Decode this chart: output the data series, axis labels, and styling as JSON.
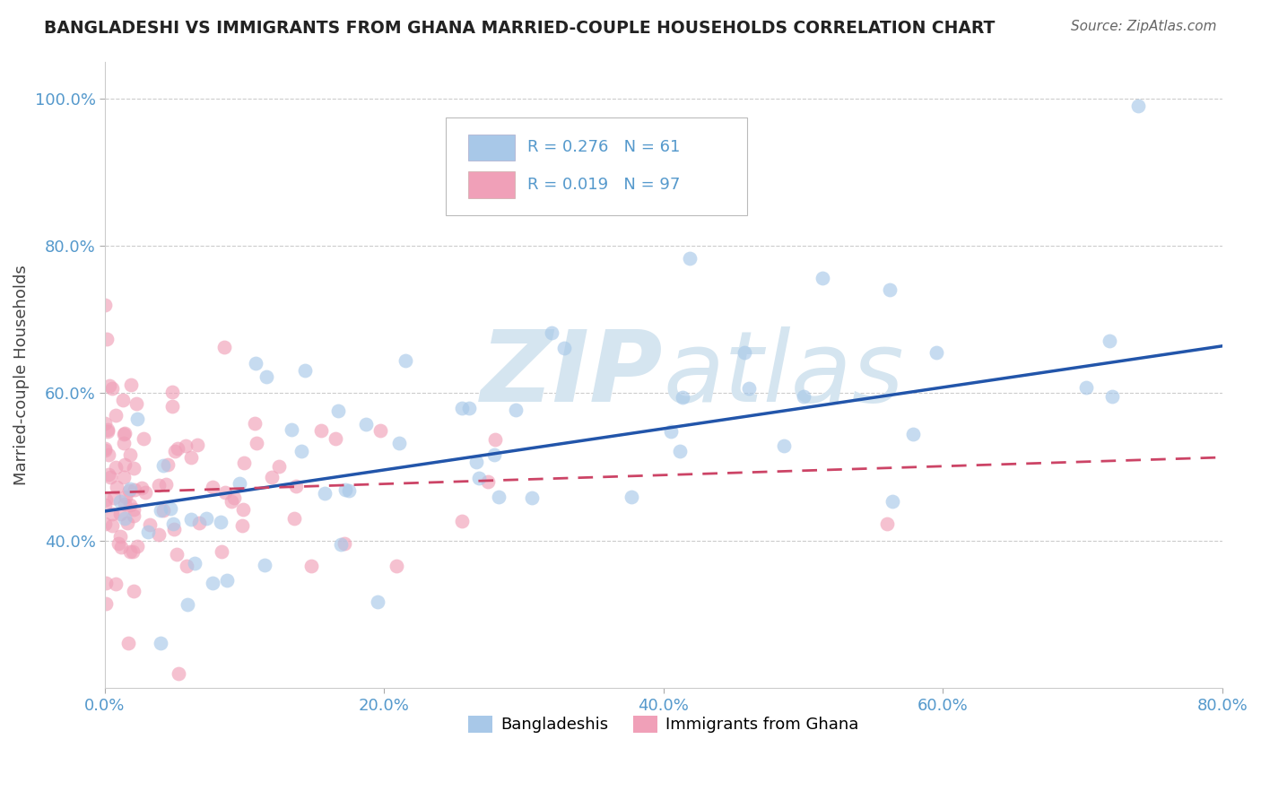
{
  "title": "BANGLADESHI VS IMMIGRANTS FROM GHANA MARRIED-COUPLE HOUSEHOLDS CORRELATION CHART",
  "source": "Source: ZipAtlas.com",
  "ylabel": "Married-couple Households",
  "xlim": [
    0.0,
    0.8
  ],
  "ylim": [
    0.2,
    1.05
  ],
  "xticks": [
    0.0,
    0.2,
    0.4,
    0.6,
    0.8
  ],
  "xticklabels": [
    "0.0%",
    "20.0%",
    "40.0%",
    "60.0%",
    "80.0%"
  ],
  "yticks": [
    0.4,
    0.6,
    0.8,
    1.0
  ],
  "yticklabels": [
    "40.0%",
    "60.0%",
    "80.0%",
    "100.0%"
  ],
  "blue_R": 0.276,
  "blue_N": 61,
  "pink_R": 0.019,
  "pink_N": 97,
  "blue_color": "#a8c8e8",
  "pink_color": "#f0a0b8",
  "blue_line_color": "#2255aa",
  "pink_line_color": "#cc4466",
  "watermark_color": "#d5e5f0",
  "title_color": "#222222",
  "source_color": "#666666",
  "axis_color": "#5599cc",
  "ylabel_color": "#444444",
  "grid_color": "#cccccc",
  "legend_edge_color": "#bbbbbb",
  "blue_line_intercept": 0.44,
  "blue_line_slope": 0.28,
  "pink_line_intercept": 0.465,
  "pink_line_slope": 0.06
}
